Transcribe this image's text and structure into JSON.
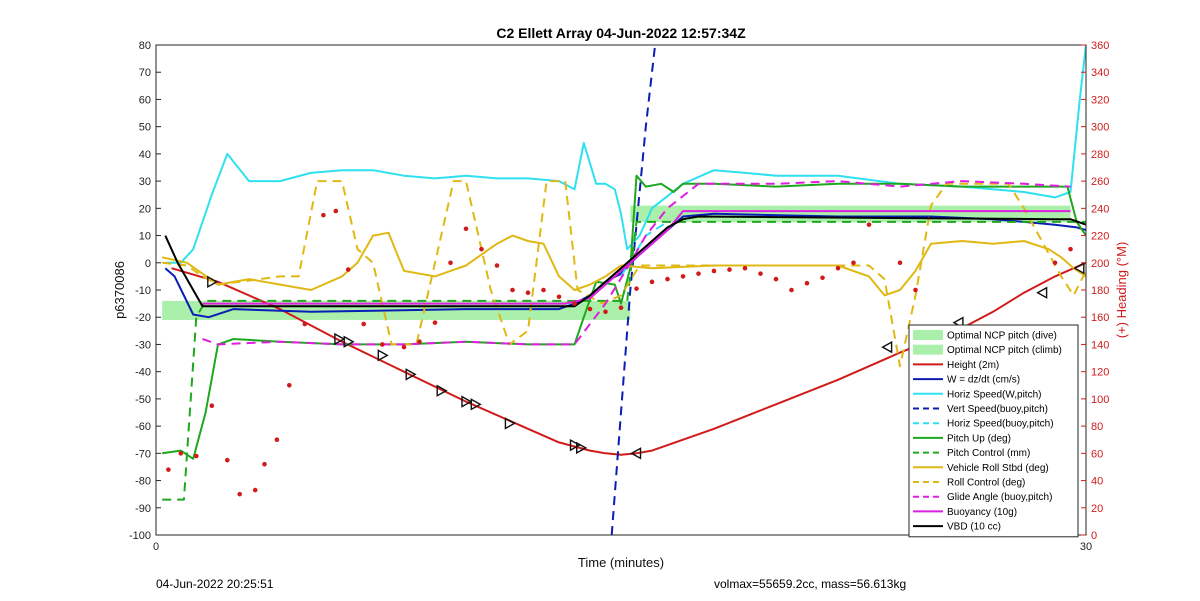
{
  "footer": {
    "start_time": "04-Jun-2022 20:25:51",
    "vol_mass": "volmax=55659.2cc, mass=56.613kg"
  },
  "chart_data": {
    "type": "line",
    "title": "C2 Ellett Array 04-Jun-2022 12:57:34Z",
    "xlabel": "Time (minutes)",
    "ylabel": "p6370086",
    "ylabel_right": "(+) Heading (°M)",
    "xlim": [
      0,
      30
    ],
    "ylim": [
      -100,
      80
    ],
    "ylim_right": [
      0,
      360
    ],
    "x_ticks": [
      "0",
      "30"
    ],
    "y_ticks": [
      "80",
      "70",
      "60",
      "50",
      "40",
      "30",
      "20",
      "10",
      "0",
      "-10",
      "-20",
      "-30",
      "-40",
      "-50",
      "-60",
      "-70",
      "-80",
      "-90",
      "-100"
    ],
    "y_right_ticks": [
      "360",
      "340",
      "320",
      "300",
      "280",
      "260",
      "240",
      "220",
      "200",
      "180",
      "160",
      "140",
      "120",
      "100",
      "80",
      "60",
      "40",
      "20",
      "0"
    ],
    "grid": false,
    "legend_position": "lower-right",
    "bands": [
      {
        "name": "Optimal NCP pitch (dive)",
        "color": "#aaf0aa",
        "x": [
          0.2,
          15.3
        ],
        "y": [
          -21,
          -14
        ]
      },
      {
        "name": "Optimal NCP pitch (climb)",
        "color": "#aaf0aa",
        "x": [
          15.3,
          29.5
        ],
        "y": [
          15,
          21
        ]
      }
    ],
    "series": [
      {
        "name": "Height (2m)",
        "color": "#d11b1b",
        "style": "solid",
        "width": 2,
        "x": [
          0.5,
          2,
          4,
          6,
          8,
          10,
          12,
          13,
          14,
          14.5,
          15,
          15.5,
          16,
          18,
          20,
          22,
          24,
          26,
          27,
          28,
          29,
          30
        ],
        "y": [
          -2,
          -7,
          -17,
          -29,
          -40,
          -51,
          -61,
          -66,
          -69,
          -70,
          -70.5,
          -70,
          -69,
          -61,
          -52,
          -43,
          -33,
          -24,
          -18,
          -11,
          -5,
          0
        ]
      },
      {
        "name": "W = dz/dt (cm/s)",
        "color": "#0a1db5",
        "style": "solid",
        "width": 2,
        "x": [
          0.3,
          0.6,
          1.2,
          1.7,
          2.5,
          5,
          10,
          13,
          13.5,
          14,
          14.5,
          15,
          15.5,
          16,
          16.5,
          17,
          18,
          22,
          25,
          27,
          28,
          29,
          29.7,
          30
        ],
        "y": [
          -2,
          -5,
          -19,
          -20,
          -17,
          -18,
          -17,
          -17,
          -15,
          -12,
          -7,
          -4,
          2,
          7,
          12,
          17,
          18,
          17,
          17,
          16,
          15,
          14,
          13,
          12
        ]
      },
      {
        "name": "Horiz Speed(W,pitch)",
        "color": "#2ee0f0",
        "style": "solid",
        "width": 2,
        "x": [
          0.3,
          0.8,
          1.2,
          1.8,
          2.3,
          3,
          4,
          5,
          6,
          7,
          8,
          9,
          10,
          11,
          12,
          13,
          13.5,
          13.8,
          14.2,
          14.5,
          14.8,
          15.0,
          15.2,
          15.6,
          16,
          17,
          18,
          19,
          20,
          22,
          24,
          26,
          27,
          28,
          29,
          29.5,
          29.8,
          30
        ],
        "y": [
          0,
          0,
          5,
          25,
          40,
          30,
          30,
          33,
          34,
          34,
          32,
          31,
          32,
          31,
          31,
          30,
          27,
          44,
          29,
          29,
          27,
          18,
          5,
          10,
          20,
          29,
          34,
          33,
          32,
          32,
          29,
          28,
          27,
          26,
          24,
          26,
          60,
          80
        ]
      },
      {
        "name": "Vert Speed(buoy,pitch)",
        "color": "#0a1db5",
        "style": "dashed",
        "width": 2,
        "x": [
          14.7,
          15.3,
          15.8,
          16.1
        ],
        "y": [
          -100,
          -10,
          50,
          80
        ]
      },
      {
        "name": "Horiz Speed(buoy,pitch)",
        "color": "#2ee0f0",
        "style": "dashed",
        "width": 2,
        "x": [
          15.0,
          15.8,
          16.5
        ],
        "y": [
          -5,
          10,
          15
        ]
      },
      {
        "name": "Pitch Up (deg)",
        "color": "#1ea81e",
        "style": "solid",
        "width": 2,
        "x": [
          0.2,
          0.8,
          1.2,
          1.6,
          2.0,
          2.5,
          4,
          6,
          8,
          10,
          12,
          13.5,
          13.8,
          14.2,
          14.8,
          15.0,
          15.3,
          15.5,
          15.8,
          16.3,
          16.7,
          17,
          18,
          20,
          22,
          24,
          26,
          28,
          29,
          29.4,
          29.7,
          30
        ],
        "y": [
          -70,
          -69,
          -72,
          -55,
          -30,
          -28,
          -29,
          -30,
          -30,
          -29,
          -30,
          -30,
          -20,
          -7,
          -8,
          -15,
          -2,
          32,
          28,
          29,
          26,
          29,
          29,
          28,
          29,
          29,
          28,
          28,
          28,
          28,
          15,
          10
        ]
      },
      {
        "name": "Pitch Control (mm)",
        "color": "#1ea81e",
        "style": "dashed",
        "width": 2,
        "x": [
          0.2,
          0.9,
          1.3,
          1.6,
          15.2,
          15.5,
          30
        ],
        "y": [
          -87,
          -87,
          -20,
          -14,
          -14,
          15,
          15
        ]
      },
      {
        "name": "Vehicle Roll Stbd (deg)",
        "color": "#e0b814",
        "style": "solid",
        "width": 2,
        "x": [
          0.2,
          1.0,
          1.5,
          2,
          3,
          5,
          6,
          6.5,
          7,
          7.5,
          8,
          8.5,
          9,
          9.5,
          10,
          10.5,
          11,
          11.5,
          12,
          12.5,
          13,
          13.5,
          14,
          14.5,
          15,
          16,
          18,
          20,
          22,
          23,
          23.5,
          24,
          24.5,
          25,
          26,
          27,
          28,
          28.8,
          29.2,
          29.6,
          30
        ],
        "y": [
          2,
          0,
          -4,
          -8,
          -6,
          -10,
          -5,
          0,
          10,
          11,
          -3,
          -4,
          -5,
          -3,
          -1,
          3,
          7,
          10,
          8,
          7,
          -5,
          -10,
          -8,
          -5,
          -1,
          -2,
          -1,
          -1,
          -1,
          -5,
          -12,
          -10,
          -3,
          7,
          8,
          7,
          8,
          5,
          2,
          -2,
          -5
        ]
      },
      {
        "name": "Roll Control (deg)",
        "color": "#e0b814",
        "style": "dashed",
        "width": 2,
        "x": [
          0.2,
          1.0,
          1.5,
          2,
          4,
          4.6,
          5.2,
          6,
          6.5,
          7.0,
          7.6,
          8.4,
          9.0,
          9.6,
          10,
          10.8,
          11.4,
          12,
          12.6,
          13.2,
          13.6,
          14.4,
          15.0,
          15.6,
          16,
          20,
          23,
          23.5,
          24,
          24.5,
          25.0,
          25.5,
          27.5,
          28,
          29.2,
          29.6,
          30
        ],
        "y": [
          0,
          -1,
          -5,
          -8,
          -5,
          -5,
          30,
          30,
          5,
          0,
          -30,
          -30,
          0,
          30,
          30,
          -10,
          -30,
          -25,
          30,
          30,
          -10,
          -15,
          -12,
          -1,
          -1,
          -1,
          -1,
          -6,
          -38,
          -12,
          21,
          29,
          29,
          20,
          -5,
          -12,
          -3
        ]
      },
      {
        "name": "Glide Angle (buoy,pitch)",
        "color": "#e01ee0",
        "style": "dashed",
        "width": 2,
        "x": [
          1.5,
          2,
          4,
          6,
          8,
          10,
          12,
          13.5,
          14.5,
          15.2,
          15.8,
          16.5,
          17.5,
          20,
          22,
          24,
          26,
          28,
          29.5
        ],
        "y": [
          -28,
          -30,
          -29,
          -30,
          -30,
          -29,
          -30,
          -30,
          -15,
          -2,
          10,
          20,
          29,
          29,
          30,
          28,
          30,
          29,
          28
        ]
      },
      {
        "name": "Buoyancy (10g)",
        "color": "#e01ee0",
        "style": "solid",
        "width": 2,
        "x": [
          1.5,
          13.2,
          14,
          14.5,
          15,
          15.5,
          16,
          16.5,
          17,
          29.5
        ],
        "y": [
          -15,
          -15,
          -13,
          -8,
          -3,
          2,
          7,
          12,
          19,
          19
        ]
      },
      {
        "name": "VBD (10 cc)",
        "color": "#000000",
        "style": "solid",
        "width": 2,
        "x": [
          0.3,
          0.7,
          1.2,
          1.5,
          2.0,
          13.0,
          13.5,
          14,
          14.5,
          15,
          15.5,
          16,
          16.5,
          17,
          17.5,
          29.0,
          29.5,
          30
        ],
        "y": [
          10,
          0,
          -10,
          -16,
          -16,
          -16,
          -16,
          -12,
          -7,
          -2,
          3,
          8,
          13,
          16,
          17,
          16,
          16,
          14
        ]
      }
    ],
    "heading_points": {
      "name": "(+) Heading (°M)",
      "color": "#d11b1b",
      "x": [
        0.4,
        0.8,
        1.3,
        1.8,
        2.3,
        2.7,
        3.2,
        3.5,
        3.9,
        4.3,
        4.8,
        5.4,
        5.8,
        6.2,
        6.7,
        7.3,
        8.0,
        8.5,
        9.0,
        9.5,
        10.0,
        10.5,
        11.0,
        11.5,
        12.0,
        12.5,
        13.0,
        13.5,
        14.0,
        14.5,
        15.0,
        15.5,
        16.0,
        16.5,
        17.0,
        17.5,
        18.0,
        18.5,
        19.0,
        19.5,
        20.0,
        20.5,
        21.0,
        21.5,
        22.0,
        22.5,
        23.0,
        24.0,
        24.5,
        25.0,
        25.5,
        26.0,
        26.5,
        27.0,
        27.5,
        28.0,
        28.5,
        29.0,
        29.5
      ],
      "y": [
        48,
        60,
        58,
        95,
        55,
        30,
        33,
        52,
        70,
        110,
        155,
        235,
        238,
        195,
        155,
        140,
        138,
        142,
        156,
        200,
        225,
        210,
        198,
        180,
        178,
        180,
        175,
        170,
        166,
        164,
        167,
        181,
        186,
        188,
        190,
        192,
        194,
        195,
        196,
        192,
        188,
        180,
        185,
        189,
        196,
        200,
        228,
        200,
        180,
        92,
        93,
        94,
        96,
        98,
        110,
        125,
        150,
        200,
        210
      ]
    },
    "markers": {
      "x": [
        1.8,
        5.9,
        6.2,
        7.3,
        8.2,
        9.2,
        10.0,
        10.3,
        11.4,
        13.5,
        13.7,
        15.5,
        23.6,
        24.7,
        25.9,
        28.6,
        29.8
      ],
      "y": [
        -7,
        -28,
        -29,
        -34,
        -41,
        -47,
        -51,
        -52,
        -59,
        -67,
        -68,
        -70,
        -31,
        -28,
        -22,
        -11,
        -2
      ]
    },
    "legend_entries": [
      "Optimal NCP pitch (dive)",
      "Optimal NCP pitch (climb)",
      "Height (2m)",
      "W = dz/dt (cm/s)",
      "Horiz Speed(W,pitch)",
      "Vert Speed(buoy,pitch)",
      "Horiz Speed(buoy,pitch)",
      "Pitch Up (deg)",
      "Pitch Control (mm)",
      "Vehicle Roll Stbd (deg)",
      "Roll Control (deg)",
      "Glide Angle (buoy,pitch)",
      "Buoyancy (10g)",
      "VBD (10 cc)"
    ]
  }
}
